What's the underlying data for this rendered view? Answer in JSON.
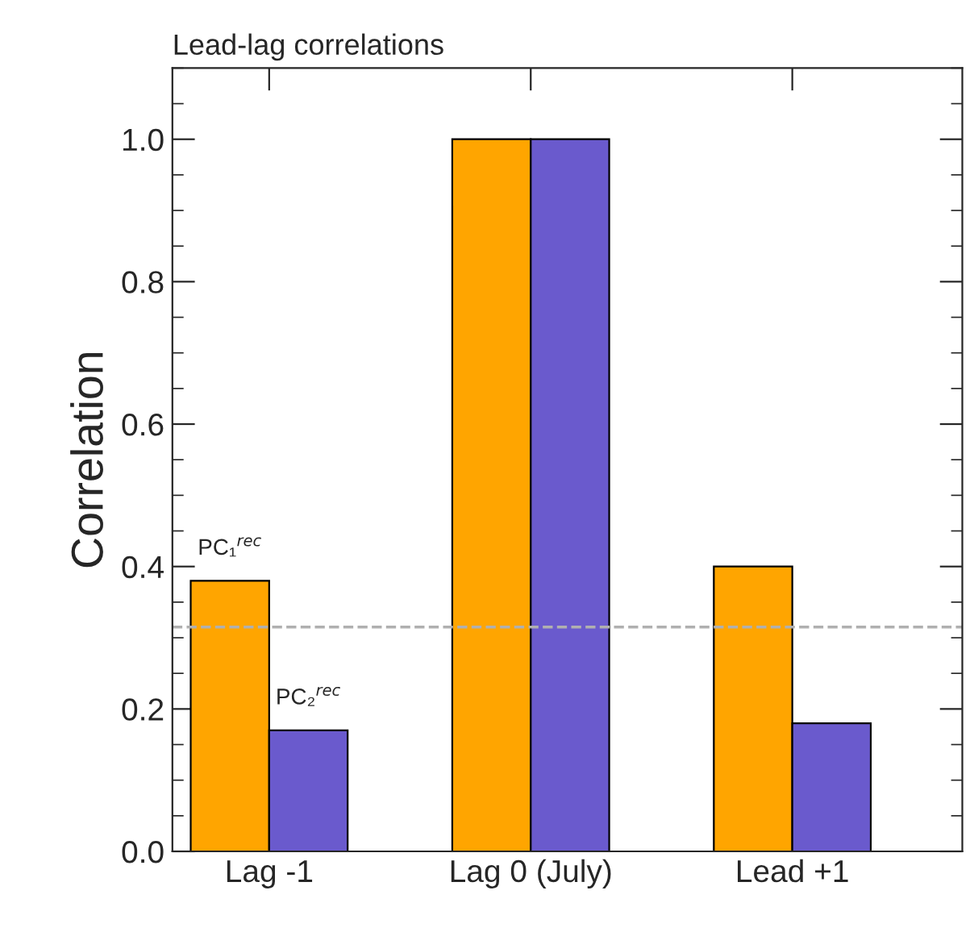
{
  "chart_data": {
    "type": "bar",
    "title": "Lead-lag correlations",
    "ylabel": "Correlation",
    "categories": [
      "Lag -1",
      "Lag 0 (July)",
      "Lead +1"
    ],
    "series": [
      {
        "name": "PC₁$^{rec}$",
        "color": "#ffa500",
        "values": [
          0.38,
          1.0,
          0.4
        ]
      },
      {
        "name": "PC₂$^{rec}$",
        "color": "#6a5acd",
        "values": [
          0.17,
          1.0,
          0.18
        ]
      }
    ],
    "ylim": [
      0,
      1.1
    ],
    "yticks": [
      {
        "value": 0,
        "label": "0.0"
      },
      {
        "value": 0.2,
        "label": "0.2"
      },
      {
        "value": 0.4,
        "label": "0.4"
      },
      {
        "value": 0.6,
        "label": "0.6"
      },
      {
        "value": 0.8,
        "label": "0.8"
      },
      {
        "value": 1.0,
        "label": "1.0"
      }
    ],
    "ref_lines": [
      {
        "axis": "y",
        "value": 0.315,
        "color": "#b0b0b0",
        "line_style": "dashed"
      }
    ],
    "grid": false,
    "legend": false
  }
}
